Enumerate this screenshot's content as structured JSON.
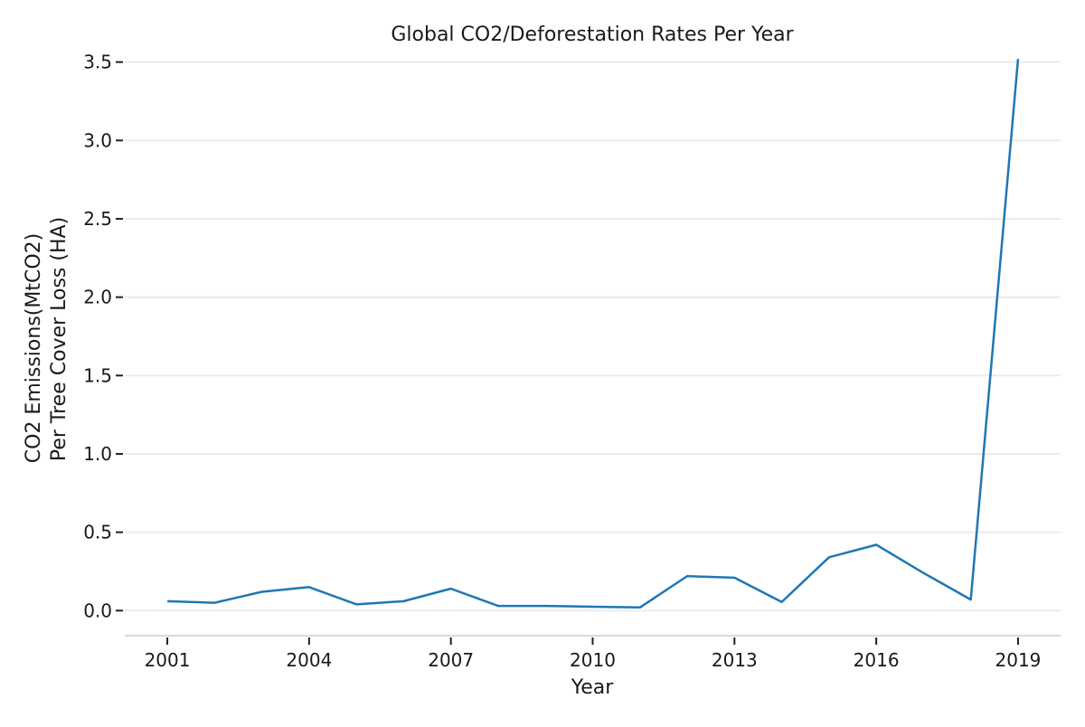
{
  "chart_data": {
    "type": "line",
    "title": "Global CO2/Deforestation Rates Per Year",
    "xlabel": "Year",
    "ylabel_lines": [
      "CO2 Emissions(MtCO2)",
      "Per Tree Cover Loss (HA)"
    ],
    "xlim": [
      2000.1,
      2019.9
    ],
    "ylim": [
      -0.16,
      3.55
    ],
    "xticks": [
      2001,
      2004,
      2007,
      2010,
      2013,
      2016,
      2019
    ],
    "yticks": [
      0.0,
      0.5,
      1.0,
      1.5,
      2.0,
      2.5,
      3.0,
      3.5
    ],
    "ytick_labels": [
      "0.0",
      "0.5",
      "1.0",
      "1.5",
      "2.0",
      "2.5",
      "3.0",
      "3.5"
    ],
    "grid": "horizontal",
    "series": [
      {
        "color": "#1f77b4",
        "x": [
          2001,
          2002,
          2003,
          2004,
          2005,
          2006,
          2007,
          2008,
          2009,
          2010,
          2011,
          2012,
          2013,
          2014,
          2015,
          2016,
          2017,
          2018,
          2019
        ],
        "values": [
          0.06,
          0.05,
          0.12,
          0.15,
          0.04,
          0.06,
          0.14,
          0.03,
          0.03,
          0.025,
          0.02,
          0.22,
          0.21,
          0.055,
          0.34,
          0.42,
          0.24,
          0.07,
          3.52
        ]
      }
    ]
  }
}
